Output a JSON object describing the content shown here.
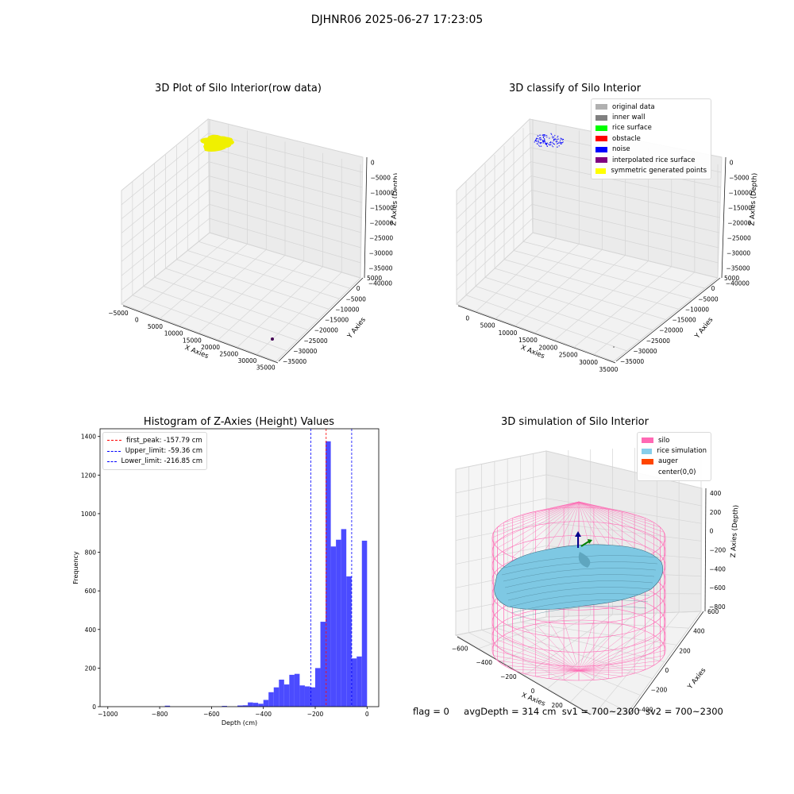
{
  "suptitle": "DJHNR06 2025-06-27 17:23:05",
  "status": {
    "flag": "flag = 0",
    "avg_depth": "avgDepth = 314 cm",
    "sv1": "sv1 = 700~2300",
    "sv2": "sv2 = 700~2300"
  },
  "chart_data": [
    {
      "type": "scatter",
      "title": "3D Plot of Silo Interior(row data)",
      "xlabel": "X Axies",
      "ylabel": "Y Axies",
      "zlabel": "Z Axies (Depth)",
      "x_ticks": [
        "−5000",
        "0",
        "5000",
        "10000",
        "15000",
        "20000",
        "25000",
        "30000",
        "35000"
      ],
      "y_ticks": [
        "5000",
        "0",
        "−5000",
        "−10000",
        "−15000",
        "−20000",
        "−25000",
        "−30000",
        "−35000"
      ],
      "z_ticks": [
        "0",
        "−5000",
        "−10000",
        "−15000",
        "−20000",
        "−25000",
        "−30000",
        "−35000",
        "−40000"
      ],
      "series": [
        {
          "color": "#f0f000",
          "points_xy": [
            [
              -1500,
              -800
            ],
            [
              -500,
              -1600
            ],
            [
              500,
              -1200
            ],
            [
              1200,
              -400
            ],
            [
              800,
              300
            ],
            [
              -300,
              -200
            ],
            [
              -1000,
              200
            ],
            [
              200,
              -900
            ]
          ]
        },
        {
          "color": "#440154",
          "points_xyz": [
            [
              33000,
              -34000,
              -40000
            ]
          ]
        }
      ]
    },
    {
      "type": "scatter",
      "title": "3D classify of Silo Interior",
      "xlabel": "X Axies",
      "ylabel": "Y Axies",
      "zlabel": "Z Axies (Depth)",
      "x_ticks": [
        "0",
        "5000",
        "10000",
        "15000",
        "20000",
        "25000",
        "30000",
        "35000"
      ],
      "y_ticks": [
        "5000",
        "0",
        "−5000",
        "−10000",
        "−15000",
        "−20000",
        "−25000",
        "−30000",
        "−35000"
      ],
      "z_ticks": [
        "0",
        "−5000",
        "−10000",
        "−15000",
        "−20000",
        "−25000",
        "−30000",
        "−35000",
        "−40000"
      ],
      "legend": [
        {
          "label": "original data",
          "color": "#b0b0b0"
        },
        {
          "label": "inner wall",
          "color": "#808080"
        },
        {
          "label": "rice surface",
          "color": "#00ff00"
        },
        {
          "label": "obstacle",
          "color": "#ff0000"
        },
        {
          "label": "noise",
          "color": "#0000ff"
        },
        {
          "label": "interpolated rice surface",
          "color": "#800080"
        },
        {
          "label": "symmetric generated points",
          "color": "#ffff00"
        }
      ]
    },
    {
      "type": "bar",
      "title": "Histogram of Z-Axies (Height) Values",
      "xlabel": "Depth (cm)",
      "ylabel": "Frequency",
      "xlim": [
        -1030,
        45
      ],
      "ylim": [
        0,
        1440
      ],
      "x_ticks": [
        -1000,
        -800,
        -600,
        -400,
        -200,
        0
      ],
      "y_ticks": [
        0,
        200,
        400,
        600,
        800,
        1000,
        1200,
        1400
      ],
      "bar_color": "#4b4bff",
      "bin_width": 20,
      "bins": [
        {
          "x": -760,
          "y": 5
        },
        {
          "x": -540,
          "y": 4
        },
        {
          "x": -480,
          "y": 6
        },
        {
          "x": -460,
          "y": 7
        },
        {
          "x": -440,
          "y": 22
        },
        {
          "x": -420,
          "y": 20
        },
        {
          "x": -400,
          "y": 15
        },
        {
          "x": -380,
          "y": 35
        },
        {
          "x": -360,
          "y": 75
        },
        {
          "x": -340,
          "y": 100
        },
        {
          "x": -320,
          "y": 140
        },
        {
          "x": -300,
          "y": 115
        },
        {
          "x": -280,
          "y": 165
        },
        {
          "x": -260,
          "y": 170
        },
        {
          "x": -240,
          "y": 110
        },
        {
          "x": -220,
          "y": 105
        },
        {
          "x": -200,
          "y": 100
        },
        {
          "x": -180,
          "y": 200
        },
        {
          "x": -160,
          "y": 440
        },
        {
          "x": -140,
          "y": 1375
        },
        {
          "x": -120,
          "y": 830
        },
        {
          "x": -100,
          "y": 865
        },
        {
          "x": -80,
          "y": 920
        },
        {
          "x": -60,
          "y": 675
        },
        {
          "x": -40,
          "y": 250
        },
        {
          "x": -20,
          "y": 260
        },
        {
          "x": 0,
          "y": 860
        }
      ],
      "vlines": [
        {
          "label": "first_peak: -157.79 cm",
          "x": -157.79,
          "color": "#ff0000"
        },
        {
          "label": "Upper_limit: -59.36 cm",
          "x": -59.36,
          "color": "#0000ff"
        },
        {
          "label": "Lower_limit: -216.85 cm",
          "x": -216.85,
          "color": "#0000ff"
        }
      ]
    },
    {
      "type": "surface",
      "title": "3D simulation of Silo Interior",
      "xlabel": "X Axies",
      "ylabel": "Y Axies",
      "zlabel": "Z Axies (Depth)",
      "x_ticks": [
        "−600",
        "−400",
        "−200",
        "0",
        "200",
        "400",
        "600"
      ],
      "y_ticks": [
        "600",
        "400",
        "200",
        "0",
        "−200",
        "−400",
        "−600"
      ],
      "z_ticks": [
        "400",
        "200",
        "0",
        "−200",
        "−400",
        "−600",
        "−800"
      ],
      "colors": {
        "silo": "#ff69b4",
        "rice": "#7ec8e3",
        "auger": "#ff4500"
      },
      "legend": [
        {
          "label": "silo",
          "color": "#ff69b4"
        },
        {
          "label": "rice simulation",
          "color": "#87ceeb"
        },
        {
          "label": "auger",
          "color": "#ff4500"
        },
        {
          "label": "center(0,0)",
          "color": ""
        }
      ]
    }
  ]
}
